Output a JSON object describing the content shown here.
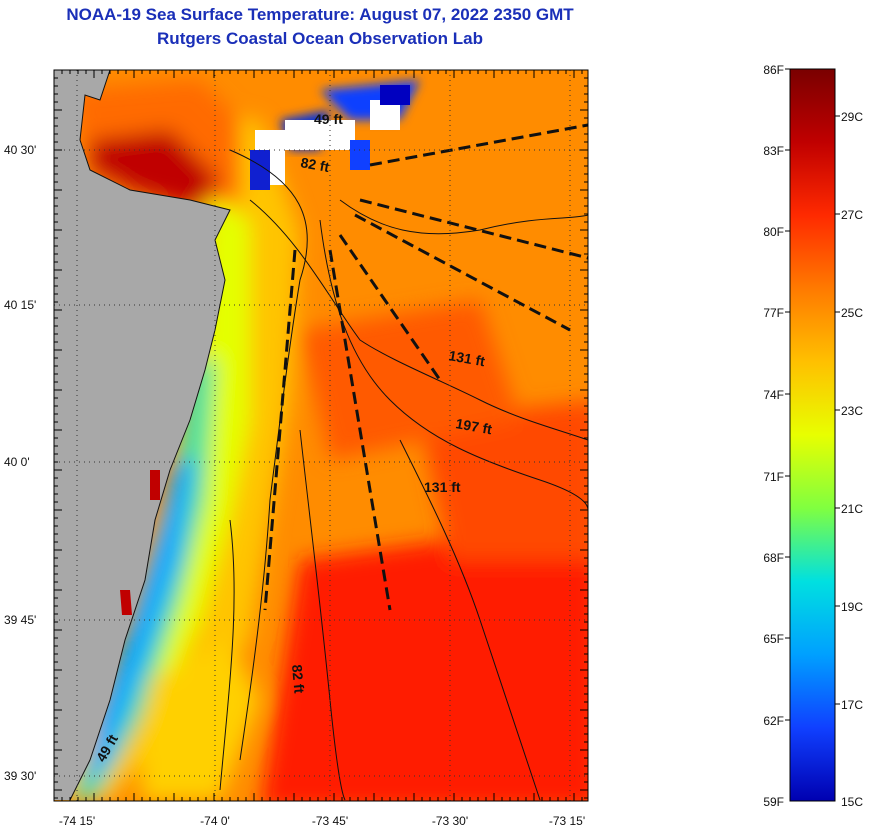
{
  "header": {
    "title": "NOAA-19 Sea Surface Temperature:  August 07, 2022 2350 GMT",
    "subtitle": "Rutgers Coastal Ocean Observation Lab"
  },
  "map": {
    "lat_labels": [
      "40 30'",
      "40 15'",
      "40 0'",
      "39 45'",
      "39 30'"
    ],
    "lon_labels": [
      "-74 15'",
      "-74 0'",
      "-73 45'",
      "-73 30'",
      "-73 15'"
    ],
    "depth_labels": [
      "49 ft",
      "82 ft",
      "131 ft",
      "197 ft",
      "131 ft",
      "82 ft",
      "49 ft"
    ]
  },
  "colorbar": {
    "f_labels": [
      "86F",
      "83F",
      "80F",
      "77F",
      "74F",
      "71F",
      "68F",
      "65F",
      "62F",
      "59F"
    ],
    "c_labels": [
      "29C",
      "27C",
      "25C",
      "23C",
      "21C",
      "19C",
      "17C",
      "15C"
    ],
    "colors": [
      "#7a0000",
      "#c00000",
      "#ff2a00",
      "#ff7a00",
      "#ffc000",
      "#e8ff00",
      "#80ff40",
      "#00e0e0",
      "#00a0ff",
      "#1040ff",
      "#0000b0"
    ]
  }
}
